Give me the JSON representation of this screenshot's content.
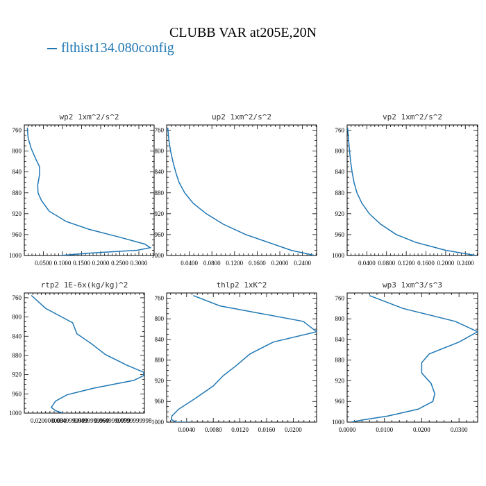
{
  "title": "CLUBB VAR at205E,20N",
  "legend": {
    "label": "flthist134.080config",
    "color": "#1f77b4"
  },
  "chart_data": [
    {
      "type": "line",
      "title": "wp2  1xm^2/s^2",
      "xlim": [
        0.0,
        0.34
      ],
      "ylim": [
        1000,
        750
      ],
      "xticks": [
        0.05,
        0.1,
        0.15,
        0.2,
        0.25,
        0.3
      ],
      "xtick_labels": [
        "0.0500",
        "0.1000",
        "0.1500",
        "0.2000",
        "0.2500",
        "0.3000"
      ],
      "yticks": [
        760,
        800,
        840,
        880,
        920,
        960,
        1000
      ],
      "x": [
        0.008,
        0.01,
        0.018,
        0.03,
        0.04,
        0.04,
        0.035,
        0.036,
        0.045,
        0.065,
        0.11,
        0.17,
        0.25,
        0.315,
        0.33,
        0.295,
        0.18,
        0.095
      ],
      "y": [
        755,
        775,
        795,
        815,
        830,
        845,
        865,
        880,
        895,
        915,
        935,
        950,
        965,
        978,
        985,
        990,
        995,
        1000
      ]
    },
    {
      "type": "line",
      "title": "up2  1xm^2/s^2",
      "xlim": [
        0.0,
        0.265
      ],
      "ylim": [
        1000,
        750
      ],
      "xticks": [
        0.04,
        0.08,
        0.12,
        0.16,
        0.2,
        0.24
      ],
      "xtick_labels": [
        "0.0400",
        "0.0800",
        "0.1200",
        "0.1600",
        "0.2000",
        "0.2400"
      ],
      "yticks": [
        760,
        800,
        840,
        880,
        920,
        960,
        1000
      ],
      "x": [
        0.002,
        0.004,
        0.007,
        0.011,
        0.016,
        0.022,
        0.032,
        0.047,
        0.07,
        0.1,
        0.14,
        0.18,
        0.22,
        0.262
      ],
      "y": [
        755,
        780,
        800,
        820,
        840,
        860,
        880,
        900,
        920,
        940,
        960,
        975,
        990,
        1000
      ]
    },
    {
      "type": "line",
      "title": "vp2  1xm^2/s^2",
      "xlim": [
        0.0,
        0.265
      ],
      "ylim": [
        1000,
        750
      ],
      "xticks": [
        0.04,
        0.08,
        0.12,
        0.16,
        0.2,
        0.24
      ],
      "xtick_labels": [
        "0.0400",
        "0.0800",
        "0.1200",
        "0.1600",
        "0.2000",
        "0.2400"
      ],
      "yticks": [
        760,
        800,
        840,
        880,
        920,
        960,
        1000
      ],
      "x": [
        0.001,
        0.003,
        0.005,
        0.007,
        0.01,
        0.014,
        0.02,
        0.03,
        0.045,
        0.068,
        0.1,
        0.14,
        0.2,
        0.262
      ],
      "y": [
        755,
        780,
        800,
        820,
        840,
        860,
        880,
        900,
        920,
        940,
        960,
        975,
        990,
        1000
      ]
    },
    {
      "type": "line",
      "title": "rtp2  1E-6x(kg/kg)^2",
      "xlim": [
        0.003,
        0.0875
      ],
      "ylim": [
        1000,
        750
      ],
      "xticks": [
        0.02,
        0.035,
        0.05,
        0.065,
        0.08
      ],
      "xtick_labels": [
        "0.0200000000",
        "0.0349999999",
        "0.0499999999",
        "0.0649999999",
        "0.0799999998"
      ],
      "yticks": [
        760,
        800,
        840,
        880,
        920,
        960,
        1000
      ],
      "x": [
        0.008,
        0.018,
        0.037,
        0.04,
        0.05,
        0.06,
        0.075,
        0.087,
        0.087,
        0.08,
        0.052,
        0.033,
        0.025,
        0.022,
        0.025,
        0.03
      ],
      "y": [
        755,
        782,
        812,
        835,
        855,
        878,
        900,
        915,
        922,
        932,
        948,
        962,
        975,
        988,
        995,
        1000
      ]
    },
    {
      "type": "line",
      "title": "thlp2  1xK^2",
      "xlim": [
        0.001,
        0.0235
      ],
      "ylim": [
        1000,
        750
      ],
      "xticks": [
        0.004,
        0.008,
        0.012,
        0.016,
        0.02
      ],
      "xtick_labels": [
        "0.0040",
        "0.0080",
        "0.0120",
        "0.0160",
        "0.0200"
      ],
      "yticks": [
        760,
        800,
        840,
        880,
        920,
        960,
        1000
      ],
      "x": [
        0.005,
        0.009,
        0.0215,
        0.0235,
        0.017,
        0.0135,
        0.0115,
        0.0095,
        0.008,
        0.0052,
        0.0028,
        0.0018,
        0.0017,
        0.0025,
        0.0045
      ],
      "y": [
        755,
        775,
        805,
        825,
        845,
        868,
        890,
        910,
        930,
        955,
        975,
        988,
        995,
        1000,
        1000
      ]
    },
    {
      "type": "line",
      "title": "wp3  1xm^3/s^3",
      "xlim": [
        0.0,
        0.035
      ],
      "ylim": [
        1000,
        750
      ],
      "xticks": [
        0.0,
        0.01,
        0.02,
        0.03
      ],
      "xtick_labels": [
        "0.0000",
        "0.0100",
        "0.0200",
        "0.0300"
      ],
      "yticks": [
        760,
        800,
        840,
        880,
        920,
        960,
        1000
      ],
      "x": [
        0.006,
        0.015,
        0.029,
        0.035,
        0.03,
        0.022,
        0.02,
        0.02,
        0.0225,
        0.0235,
        0.023,
        0.019,
        0.011,
        0.004,
        0.001
      ],
      "y": [
        755,
        780,
        805,
        825,
        845,
        868,
        885,
        905,
        925,
        945,
        960,
        975,
        988,
        996,
        1000
      ]
    }
  ]
}
